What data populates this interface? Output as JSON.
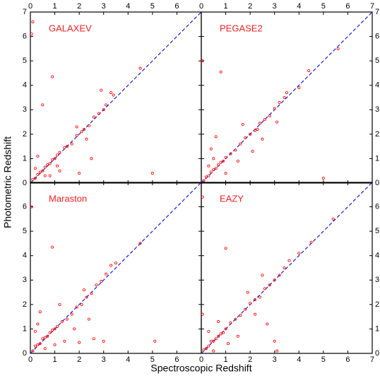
{
  "xlabel": "Spectroscopic Redshift",
  "ylabel": "Photometric Redshift",
  "chart_data": [
    {
      "type": "scatter",
      "title": "GALAXEV",
      "color": "#ff0000",
      "xlim": [
        0,
        7
      ],
      "ylim": [
        0,
        7
      ],
      "xticks": [
        0,
        1,
        2,
        3,
        4,
        5,
        6,
        7
      ],
      "yticks": [
        0,
        1,
        2,
        3,
        4,
        5,
        6,
        7
      ],
      "x": [
        0.1,
        0.2,
        0.3,
        0.4,
        0.5,
        0.6,
        0.7,
        0.8,
        0.9,
        1.0,
        1.1,
        1.2,
        1.4,
        1.5,
        1.7,
        1.9,
        2.1,
        2.2,
        2.4,
        2.6,
        2.8,
        3.0,
        3.1,
        3.3,
        0.3,
        0.5,
        0.8,
        1.2,
        2.0,
        2.5,
        0.05,
        0.1,
        3.4,
        4.5,
        1.9,
        2.9,
        0.9,
        1.1,
        2.3,
        5.0,
        0.2,
        0.6
      ],
      "y": [
        0.15,
        0.2,
        0.35,
        0.45,
        0.5,
        0.65,
        0.75,
        0.8,
        0.95,
        1.0,
        1.15,
        1.25,
        1.45,
        1.5,
        1.6,
        1.95,
        2.1,
        2.2,
        2.35,
        2.7,
        2.85,
        3.0,
        3.2,
        3.7,
        1.1,
        3.2,
        0.3,
        0.5,
        0.4,
        1.0,
        6.1,
        6.6,
        3.6,
        4.7,
        2.3,
        3.8,
        4.35,
        0.7,
        1.8,
        0.4,
        0.6,
        0.3
      ]
    },
    {
      "type": "scatter",
      "title": "PEGASE2",
      "color": "#ff0000",
      "xlim": [
        0,
        7
      ],
      "ylim": [
        0,
        7
      ],
      "xticks": [
        0,
        1,
        2,
        3,
        4,
        5,
        6,
        7
      ],
      "yticks": [
        0,
        1,
        2,
        3,
        4,
        5,
        6,
        7
      ],
      "x": [
        0.1,
        0.2,
        0.3,
        0.4,
        0.5,
        0.6,
        0.7,
        0.8,
        0.9,
        1.0,
        1.2,
        1.4,
        1.6,
        1.8,
        2.0,
        2.2,
        2.4,
        2.6,
        2.8,
        3.0,
        3.2,
        3.4,
        0.4,
        0.6,
        1.0,
        1.5,
        2.1,
        2.5,
        0.05,
        0.8,
        3.5,
        4.4,
        5.6,
        1.7,
        2.3,
        3.1,
        4.0,
        5.0,
        0.3,
        0.5
      ],
      "y": [
        0.1,
        0.25,
        0.3,
        0.45,
        0.55,
        0.6,
        0.75,
        0.85,
        0.9,
        1.05,
        1.2,
        1.35,
        1.6,
        1.85,
        2.0,
        2.15,
        2.45,
        2.6,
        2.75,
        3.05,
        3.3,
        3.5,
        1.4,
        1.9,
        0.4,
        0.9,
        1.3,
        1.8,
        5.0,
        4.55,
        3.7,
        4.6,
        5.5,
        2.4,
        2.2,
        2.5,
        3.9,
        0.2,
        0.7,
        1.0
      ]
    },
    {
      "type": "scatter",
      "title": "Maraston",
      "color": "#ff0000",
      "xlim": [
        0,
        7
      ],
      "ylim": [
        0,
        7
      ],
      "xticks": [
        0,
        1,
        2,
        3,
        4,
        5,
        6,
        7
      ],
      "yticks": [
        0,
        1,
        2,
        3,
        4,
        5,
        6,
        7
      ],
      "x": [
        0.1,
        0.2,
        0.3,
        0.4,
        0.5,
        0.6,
        0.7,
        0.8,
        0.9,
        1.0,
        1.1,
        1.3,
        1.5,
        1.7,
        1.9,
        2.1,
        2.3,
        2.5,
        2.7,
        2.9,
        3.1,
        3.3,
        0.3,
        0.6,
        1.0,
        1.4,
        2.0,
        2.6,
        0.05,
        0.9,
        3.5,
        4.5,
        2.2,
        1.2,
        0.4,
        1.8,
        2.4,
        3.0,
        5.1,
        0.2
      ],
      "y": [
        0.1,
        0.3,
        0.35,
        0.4,
        0.6,
        0.65,
        0.7,
        0.85,
        0.95,
        1.0,
        1.1,
        1.3,
        1.4,
        1.6,
        1.9,
        2.0,
        2.3,
        2.45,
        2.8,
        2.95,
        3.25,
        3.6,
        1.2,
        0.2,
        0.35,
        0.5,
        0.45,
        0.6,
        6.0,
        4.35,
        3.7,
        4.5,
        2.6,
        2.0,
        1.7,
        1.0,
        1.4,
        0.5,
        0.5,
        0.9
      ]
    },
    {
      "type": "scatter",
      "title": "EAZY",
      "color": "#ff0000",
      "xlim": [
        0,
        7
      ],
      "ylim": [
        0,
        7
      ],
      "xticks": [
        0,
        1,
        2,
        3,
        4,
        5,
        6,
        7
      ],
      "yticks": [
        0,
        1,
        2,
        3,
        4,
        5,
        6,
        7
      ],
      "x": [
        0.1,
        0.2,
        0.3,
        0.4,
        0.5,
        0.6,
        0.7,
        0.8,
        0.9,
        1.0,
        1.2,
        1.4,
        1.6,
        1.8,
        2.0,
        2.2,
        2.4,
        2.6,
        2.8,
        3.0,
        3.2,
        3.4,
        0.3,
        0.7,
        1.1,
        1.5,
        2.2,
        2.7,
        0.05,
        0.05,
        1.0,
        3.6,
        4.5,
        5.4,
        1.9,
        3.1,
        3.0,
        0.5,
        2.5,
        4.0
      ],
      "y": [
        0.15,
        0.2,
        0.3,
        0.5,
        0.5,
        0.6,
        0.7,
        0.8,
        0.85,
        1.0,
        1.25,
        1.4,
        1.55,
        1.8,
        2.05,
        2.2,
        2.3,
        2.65,
        2.8,
        3.0,
        3.2,
        3.5,
        0.9,
        1.3,
        0.4,
        0.7,
        1.6,
        1.2,
        6.4,
        1.6,
        4.3,
        3.8,
        4.55,
        5.5,
        2.5,
        0.1,
        0.5,
        0.1,
        3.2,
        4.1
      ]
    }
  ]
}
